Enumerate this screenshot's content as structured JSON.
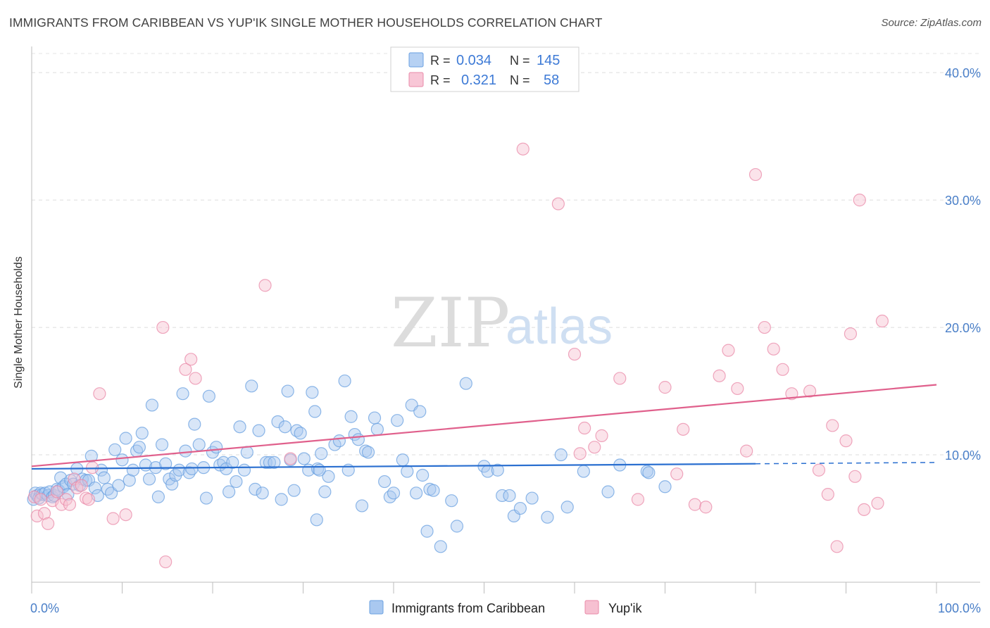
{
  "header": {
    "title": "IMMIGRANTS FROM CARIBBEAN VS YUP'IK SINGLE MOTHER HOUSEHOLDS CORRELATION CHART",
    "source": "Source: ZipAtlas.com"
  },
  "watermark": {
    "zip": "ZIP",
    "atlas": "atlas"
  },
  "stats": [
    {
      "r_label": "R =",
      "r": "0.034",
      "n_label": "N =",
      "n": "145",
      "color": "#9dc1ef"
    },
    {
      "r_label": "R =",
      "r": "0.321",
      "n_label": "N =",
      "n": "58",
      "color": "#f5b3c8"
    }
  ],
  "chart_data": {
    "type": "scatter",
    "title": "IMMIGRANTS FROM CARIBBEAN VS YUP'IK SINGLE MOTHER HOUSEHOLDS CORRELATION CHART",
    "xlabel": "",
    "ylabel": "Single Mother Households",
    "xlim": [
      0,
      100
    ],
    "ylim": [
      0,
      41.5
    ],
    "x_tick_labels": [
      "0.0%",
      "100.0%"
    ],
    "y_ticks": [
      10,
      20,
      30,
      40
    ],
    "y_tick_labels": [
      "10.0%",
      "20.0%",
      "30.0%",
      "40.0%"
    ],
    "grid": true,
    "legend_position": "bottom-center",
    "series": [
      {
        "name": "Immigrants from Caribbean",
        "color": "#6aa0e0",
        "fill": "#a9c8f0",
        "trend": {
          "x": [
            0,
            80
          ],
          "y": [
            8.9,
            9.3
          ],
          "dashed_to": [
            100,
            9.4
          ]
        },
        "points": [
          [
            0.2,
            6.5
          ],
          [
            0.4,
            7
          ],
          [
            0.6,
            6.8
          ],
          [
            0.8,
            6.6
          ],
          [
            1,
            7
          ],
          [
            1.2,
            6.9
          ],
          [
            1.5,
            7
          ],
          [
            1.8,
            6.8
          ],
          [
            2,
            7.1
          ],
          [
            2.3,
            6.7
          ],
          [
            2.5,
            6.8
          ],
          [
            2.8,
            7.3
          ],
          [
            3,
            7.2
          ],
          [
            3.2,
            8.2
          ],
          [
            3.5,
            7.5
          ],
          [
            3.8,
            7.7
          ],
          [
            4,
            6.9
          ],
          [
            4.3,
            8
          ],
          [
            4.6,
            7.7
          ],
          [
            5,
            8.9
          ],
          [
            5.3,
            7.6
          ],
          [
            5.6,
            8.1
          ],
          [
            6,
            8
          ],
          [
            6.3,
            8
          ],
          [
            6.6,
            9.9
          ],
          [
            7,
            7.4
          ],
          [
            7.3,
            6.8
          ],
          [
            7.7,
            8.8
          ],
          [
            8,
            8.2
          ],
          [
            8.4,
            7.3
          ],
          [
            8.8,
            7
          ],
          [
            9.2,
            10.4
          ],
          [
            9.6,
            7.6
          ],
          [
            10,
            9.6
          ],
          [
            10.4,
            11.3
          ],
          [
            10.8,
            8
          ],
          [
            11.2,
            8.8
          ],
          [
            11.6,
            10.3
          ],
          [
            11.9,
            10.6
          ],
          [
            12.2,
            11.7
          ],
          [
            12.6,
            9.2
          ],
          [
            13,
            8.1
          ],
          [
            13.3,
            13.9
          ],
          [
            13.7,
            9
          ],
          [
            14,
            6.7
          ],
          [
            14.4,
            10.8
          ],
          [
            14.8,
            9.3
          ],
          [
            15.2,
            8.1
          ],
          [
            15.5,
            7.7
          ],
          [
            15.9,
            8.4
          ],
          [
            16.3,
            8.8
          ],
          [
            16.7,
            14.8
          ],
          [
            17,
            10.3
          ],
          [
            17.4,
            8.6
          ],
          [
            17.7,
            8.9
          ],
          [
            18,
            12.4
          ],
          [
            18.5,
            10.8
          ],
          [
            19,
            9
          ],
          [
            19.3,
            6.6
          ],
          [
            19.6,
            14.6
          ],
          [
            20,
            10.2
          ],
          [
            20.4,
            10.6
          ],
          [
            20.8,
            9.2
          ],
          [
            21.2,
            9.4
          ],
          [
            21.5,
            8.9
          ],
          [
            21.8,
            7.1
          ],
          [
            22.2,
            9.4
          ],
          [
            22.6,
            7.9
          ],
          [
            23,
            12.2
          ],
          [
            23.5,
            8.8
          ],
          [
            23.8,
            10.2
          ],
          [
            24.3,
            15.4
          ],
          [
            24.7,
            7.3
          ],
          [
            25.1,
            11.9
          ],
          [
            25.5,
            7
          ],
          [
            25.9,
            9.4
          ],
          [
            26.3,
            9.4
          ],
          [
            26.8,
            9.4
          ],
          [
            27.2,
            12.6
          ],
          [
            27.6,
            6.5
          ],
          [
            28,
            12.2
          ],
          [
            28.3,
            15
          ],
          [
            28.6,
            9.6
          ],
          [
            29,
            7.2
          ],
          [
            29.3,
            11.9
          ],
          [
            29.7,
            11.7
          ],
          [
            30.1,
            9.7
          ],
          [
            30.6,
            8.8
          ],
          [
            31,
            14.9
          ],
          [
            31.3,
            13.4
          ],
          [
            31.6,
            8.9
          ],
          [
            32,
            10.1
          ],
          [
            32.4,
            7.1
          ],
          [
            32.8,
            8.3
          ],
          [
            33.5,
            10.8
          ],
          [
            34,
            11.1
          ],
          [
            31.8,
            8.8
          ],
          [
            31.5,
            4.9
          ],
          [
            34.6,
            15.8
          ],
          [
            35,
            8.8
          ],
          [
            35.3,
            13
          ],
          [
            35.7,
            11.6
          ],
          [
            36.1,
            11.2
          ],
          [
            36.5,
            6
          ],
          [
            36.9,
            10.3
          ],
          [
            37.2,
            10.2
          ],
          [
            37.9,
            12.9
          ],
          [
            38.2,
            12
          ],
          [
            39,
            7.9
          ],
          [
            39.6,
            6.7
          ],
          [
            40,
            7
          ],
          [
            40.4,
            12.7
          ],
          [
            41,
            9.6
          ],
          [
            41.5,
            8.7
          ],
          [
            42,
            13.9
          ],
          [
            42.5,
            7
          ],
          [
            42.9,
            13.4
          ],
          [
            43.2,
            8.4
          ],
          [
            43.7,
            4
          ],
          [
            44,
            7.3
          ],
          [
            44.4,
            7.2
          ],
          [
            45.2,
            2.8
          ],
          [
            46.4,
            6.4
          ],
          [
            47,
            4.4
          ],
          [
            48,
            15.6
          ],
          [
            50,
            9.1
          ],
          [
            50.4,
            8.7
          ],
          [
            51.5,
            8.8
          ],
          [
            52,
            6.8
          ],
          [
            52.8,
            6.8
          ],
          [
            53.3,
            5.2
          ],
          [
            54,
            5.8
          ],
          [
            55.3,
            6.6
          ],
          [
            57,
            5.1
          ],
          [
            58.5,
            10
          ],
          [
            59.2,
            5.9
          ],
          [
            61,
            8.7
          ],
          [
            63.7,
            7.1
          ],
          [
            65,
            9.2
          ],
          [
            68,
            8.7
          ],
          [
            68.2,
            8.6
          ],
          [
            70,
            7.5
          ]
        ]
      },
      {
        "name": "Yup'ik",
        "color": "#e98aa8",
        "fill": "#f6c0d1",
        "trend": {
          "x": [
            0,
            100
          ],
          "y": [
            9.1,
            15.5
          ]
        },
        "points": [
          [
            0.3,
            6.7
          ],
          [
            0.6,
            5.2
          ],
          [
            1,
            6.5
          ],
          [
            1.4,
            5.4
          ],
          [
            1.8,
            4.6
          ],
          [
            2.3,
            6.4
          ],
          [
            2.8,
            7.1
          ],
          [
            3.3,
            6.1
          ],
          [
            3.8,
            6.5
          ],
          [
            4.2,
            6.1
          ],
          [
            4.7,
            8.1
          ],
          [
            5,
            7.4
          ],
          [
            5.5,
            7.6
          ],
          [
            6,
            6.6
          ],
          [
            6.3,
            6.5
          ],
          [
            6.7,
            9
          ],
          [
            7.5,
            14.8
          ],
          [
            9,
            5
          ],
          [
            10.4,
            5.3
          ],
          [
            14.5,
            20
          ],
          [
            14.8,
            1.6
          ],
          [
            17,
            16.7
          ],
          [
            17.6,
            17.5
          ],
          [
            18.1,
            16
          ],
          [
            25.8,
            23.3
          ],
          [
            28.6,
            9.7
          ],
          [
            54.3,
            34
          ],
          [
            58.2,
            29.7
          ],
          [
            60,
            17.9
          ],
          [
            60.6,
            10.1
          ],
          [
            61.1,
            12.1
          ],
          [
            62.2,
            10.6
          ],
          [
            63,
            11.5
          ],
          [
            65,
            16
          ],
          [
            67,
            6.5
          ],
          [
            70,
            15.3
          ],
          [
            71.3,
            8.5
          ],
          [
            72,
            12
          ],
          [
            73.3,
            6.1
          ],
          [
            74.5,
            5.9
          ],
          [
            76,
            16.2
          ],
          [
            77,
            18.2
          ],
          [
            78,
            15.2
          ],
          [
            79,
            10.3
          ],
          [
            80,
            32
          ],
          [
            81,
            20
          ],
          [
            82,
            18.3
          ],
          [
            83,
            16.7
          ],
          [
            84,
            14.8
          ],
          [
            86,
            15
          ],
          [
            87,
            8.8
          ],
          [
            88,
            6.9
          ],
          [
            88.5,
            12.3
          ],
          [
            89,
            2.8
          ],
          [
            90,
            11.1
          ],
          [
            90.5,
            19.5
          ],
          [
            91,
            8.3
          ],
          [
            91.5,
            30
          ],
          [
            92,
            5.7
          ],
          [
            93.5,
            6.2
          ],
          [
            94,
            20.5
          ]
        ]
      }
    ]
  },
  "legend": {
    "items": [
      {
        "label": "Immigrants from Caribbean",
        "fill": "#a9c8f0",
        "stroke": "#6aa0e0"
      },
      {
        "label": "Yup'ik",
        "fill": "#f6c0d1",
        "stroke": "#e98aa8"
      }
    ]
  }
}
